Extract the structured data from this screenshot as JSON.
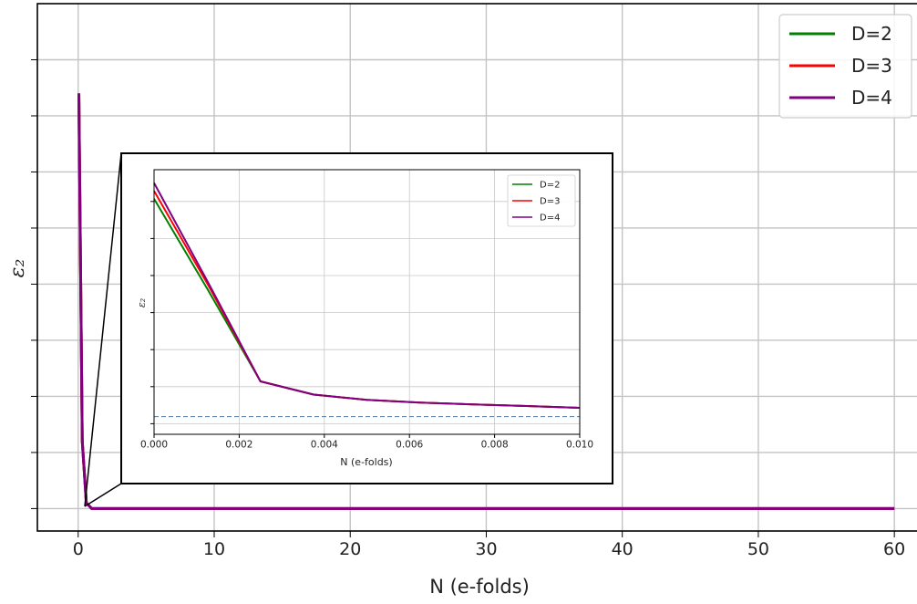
{
  "chart_data": [
    {
      "type": "line",
      "title": "",
      "xlabel": "N (e-folds)",
      "ylabel": "ε₂",
      "xlim": [
        -3,
        62
      ],
      "ylim": [
        -2,
        45
      ],
      "grid": true,
      "legend": "top-right",
      "x_ticks": [
        0,
        10,
        20,
        30,
        40,
        50,
        60
      ],
      "x_tick_labels": [
        "0",
        "10",
        "20",
        "30",
        "40",
        "50",
        "60"
      ],
      "y_tick_labels_shown": false,
      "series": [
        {
          "name": "D=2",
          "color": "#008000",
          "x": [
            0.05,
            0.3,
            0.6,
            1.0,
            2.0,
            5.0,
            60.0
          ],
          "y": [
            37.0,
            6.0,
            0.5,
            0.0,
            0.0,
            0.0,
            0.0
          ]
        },
        {
          "name": "D=3",
          "color": "#ff0000",
          "x": [
            0.05,
            0.3,
            0.6,
            1.0,
            2.0,
            5.0,
            60.0
          ],
          "y": [
            37.0,
            6.0,
            0.5,
            0.0,
            0.0,
            0.0,
            0.0
          ]
        },
        {
          "name": "D=4",
          "color": "#800080",
          "x": [
            0.05,
            0.3,
            0.6,
            1.0,
            2.0,
            5.0,
            60.0
          ],
          "y": [
            37.0,
            6.0,
            0.5,
            0.0,
            0.0,
            0.0,
            0.0
          ]
        }
      ]
    },
    {
      "type": "line",
      "title": "",
      "xlabel": "N (e-folds)",
      "ylabel": "ε₂",
      "xlim": [
        0,
        0.01
      ],
      "ylim": [
        0,
        1
      ],
      "grid": true,
      "legend": "top-right",
      "x_ticks": [
        0,
        0.002,
        0.004,
        0.006,
        0.008,
        0.01
      ],
      "x_tick_labels": [
        "0.000",
        "0.002",
        "0.004",
        "0.006",
        "0.008",
        "0.010"
      ],
      "y_tick_labels_shown": false,
      "reference_line": {
        "y": 0.0667,
        "style": "dashed",
        "color": "#4a7fb0"
      },
      "series": [
        {
          "name": "D=2",
          "color": "#008000",
          "x": [
            0,
            0.00125,
            0.0025,
            0.00375,
            0.005,
            0.00625,
            0.0075,
            0.00875,
            0.01
          ],
          "y": [
            0.89,
            0.55,
            0.2,
            0.15,
            0.13,
            0.12,
            0.113,
            0.107,
            0.1
          ]
        },
        {
          "name": "D=3",
          "color": "#ff0000",
          "x": [
            0,
            0.00125,
            0.0025,
            0.00375,
            0.005,
            0.00625,
            0.0075,
            0.00875,
            0.01
          ],
          "y": [
            0.92,
            0.57,
            0.2,
            0.15,
            0.13,
            0.12,
            0.113,
            0.107,
            0.1
          ]
        },
        {
          "name": "D=4",
          "color": "#800080",
          "x": [
            0,
            0.00125,
            0.0025,
            0.00375,
            0.005,
            0.00625,
            0.0075,
            0.00875,
            0.01
          ],
          "y": [
            0.95,
            0.58,
            0.2,
            0.15,
            0.13,
            0.12,
            0.113,
            0.107,
            0.1
          ]
        }
      ]
    }
  ]
}
